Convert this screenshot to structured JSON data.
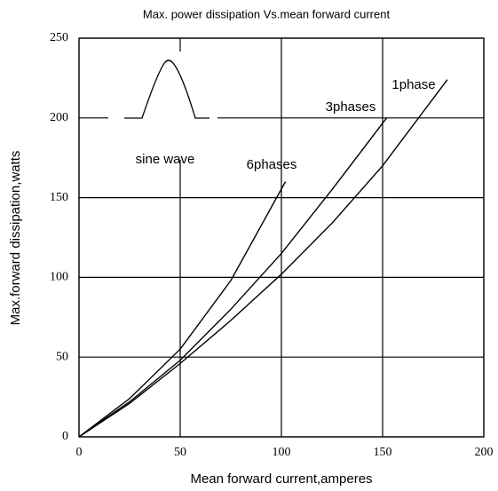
{
  "chart_data": {
    "type": "line",
    "title": "Max. power dissipation  Vs.mean  forward  current",
    "xlabel": "Mean  forward  current,amperes",
    "ylabel": "Max.forward  dissipation,watts",
    "annotation": "sine wave",
    "xlim": [
      0,
      200
    ],
    "ylim": [
      0,
      250
    ],
    "xticks": [
      0,
      50,
      100,
      150,
      200
    ],
    "yticks": [
      0,
      50,
      100,
      150,
      200,
      250
    ],
    "grid": true,
    "series": [
      {
        "name": "1phase",
        "color": "#000000",
        "x": [
          0,
          25,
          50,
          75,
          100,
          125,
          150,
          182
        ],
        "values": [
          0,
          21,
          46,
          73,
          102,
          134,
          170,
          224
        ]
      },
      {
        "name": "3phases",
        "color": "#000000",
        "x": [
          0,
          25,
          50,
          75,
          100,
          125,
          152
        ],
        "values": [
          0,
          22,
          48,
          80,
          115,
          155,
          200
        ]
      },
      {
        "name": "6phases",
        "color": "#000000",
        "x": [
          0,
          25,
          50,
          75,
          102
        ],
        "values": [
          0,
          24,
          55,
          98,
          160
        ]
      }
    ]
  }
}
